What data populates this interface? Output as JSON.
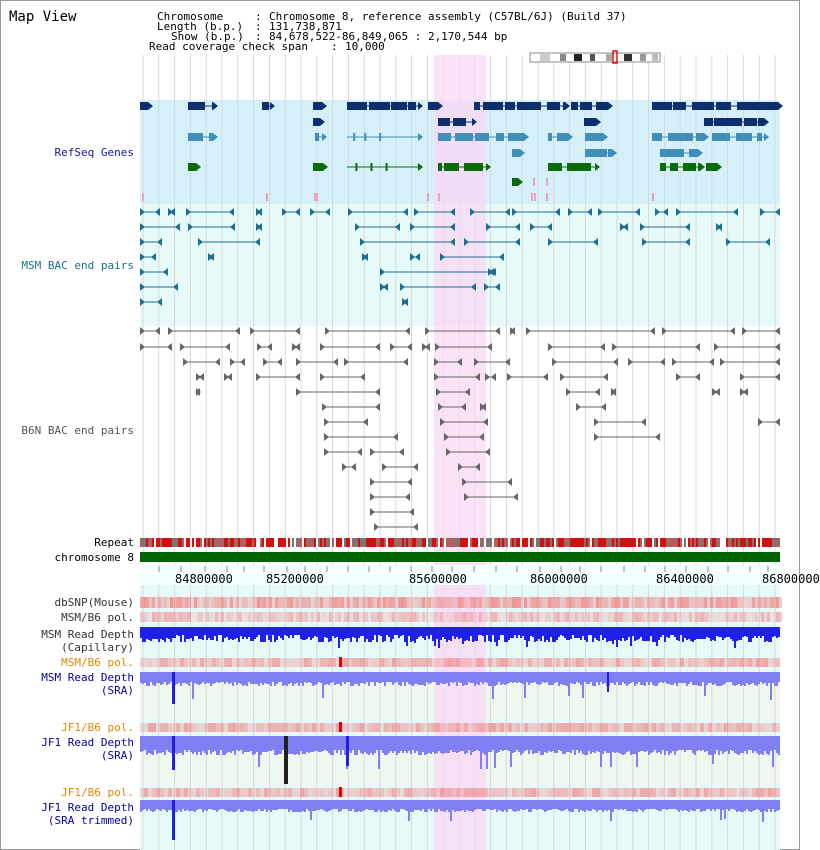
{
  "map_title": "Map View",
  "header": {
    "chromosome_key": "Chromosome",
    "chromosome_value": "Chromosome 8, reference assembly (C57BL/6J) (Build 37)",
    "length_key": "Length (b.p.)",
    "length_value": "131,738,871",
    "show_key": "Show (b.p.)",
    "show_value": "84,678,522-86,849,065 : 2,170,544 bp",
    "coverage_key": "Read coverage check span",
    "coverage_value": "10,000"
  },
  "tracks": {
    "refseq": "RefSeq Genes",
    "msm_bac": "MSM BAC end pairs",
    "b6n_bac": "B6N BAC end pairs",
    "repeat": "Repeat",
    "chromosome": "chromosome 8",
    "dbsnp": "dbSNP(Mouse)",
    "msm_pol": "MSM/B6 pol.",
    "msm_depth_cap_1": "MSM Read Depth",
    "msm_depth_cap_2": "(Capillary)",
    "msm_pol_sra": "MSM/B6 pol.",
    "msm_depth_sra_1": "MSM Read Depth",
    "msm_depth_sra_2": "(SRA)",
    "jf1_pol": "JF1/B6 pol.",
    "jf1_depth_1": "JF1 Read Depth",
    "jf1_depth_2": "(SRA)",
    "jf1_pol2": "JF1/B6 pol.",
    "jf1_trim_1": "JF1 Read Depth",
    "jf1_trim_2": "(SRA trimmed)"
  },
  "axis": {
    "ticks": [
      "84800000",
      "85200000",
      "85600000",
      "86000000",
      "86400000",
      "86800000"
    ]
  },
  "colors": {
    "refseq_bg": "#d6f0fa",
    "msm_bg": "#e6fafa",
    "highlight": "#f8d8f4",
    "gene_navy": "#0e2f6e",
    "gene_teal": "#3f8fb8",
    "gene_green": "#0b6b0b",
    "msm_pair": "#1e6e90",
    "b6n_pair": "#666666",
    "chrom_bar": "#006400",
    "repeat_red": "#d21010",
    "snp": "#ef9090",
    "depth_blue": "#2020ee",
    "depth_light": "#8080f4",
    "pol_label": "#e08a00",
    "depth_label": "#0000a0"
  }
}
